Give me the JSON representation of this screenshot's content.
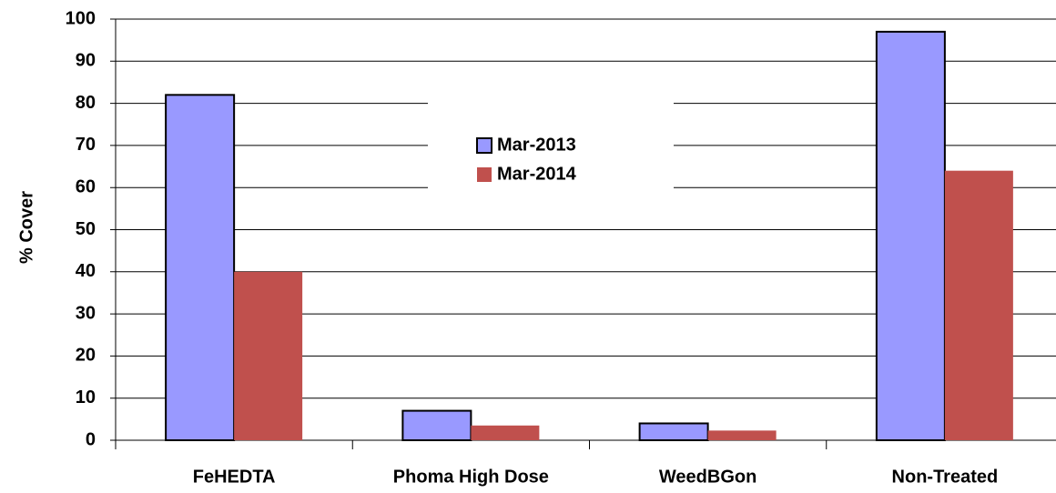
{
  "chart_data": {
    "type": "bar",
    "y_label": "% Cover",
    "categories": [
      "FeHEDTA",
      "Phoma High Dose",
      "WeedBGon",
      "Non-Treated"
    ],
    "series": [
      {
        "name": "Mar-2013",
        "color": "#9999ff",
        "values": [
          82,
          7,
          4,
          97
        ]
      },
      {
        "name": "Mar-2014",
        "color": "#c0504d",
        "values": [
          40,
          3.5,
          2.3,
          64
        ]
      }
    ],
    "ylim": [
      0,
      100
    ],
    "yticks": [
      0,
      10,
      20,
      30,
      40,
      50,
      60,
      70,
      80,
      90,
      100
    ],
    "grid": true,
    "legend": "center"
  }
}
